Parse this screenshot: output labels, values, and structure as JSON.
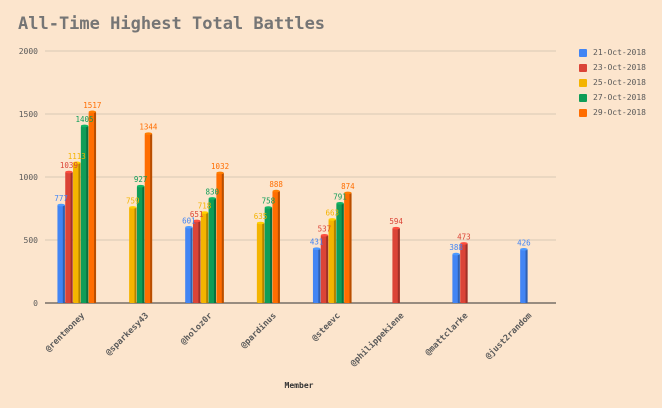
{
  "chart_data": {
    "type": "bar",
    "title": "All-Time Highest Total Battles",
    "xlabel": "Member",
    "ylabel": "",
    "ylim": [
      0,
      2000
    ],
    "yticks": [
      0,
      500,
      1000,
      1500,
      2000
    ],
    "grid": true,
    "legend_position": "right",
    "categories": [
      "@rentmoney",
      "@sparkesy43",
      "@holoz0r",
      "@pardinus",
      "@steevc",
      "@philippekiene",
      "@mattclarke",
      "@just2random"
    ],
    "series": [
      {
        "name": "21-Oct-2018",
        "color": "#4285f4",
        "values": [
          777,
          null,
          601,
          null,
          431,
          null,
          388,
          426
        ]
      },
      {
        "name": "23-Oct-2018",
        "color": "#db4437",
        "values": [
          1039,
          null,
          651,
          null,
          537,
          594,
          473,
          null
        ]
      },
      {
        "name": "25-Oct-2018",
        "color": "#f4b400",
        "values": [
          1113,
          759,
          718,
          635,
          663,
          null,
          null,
          null
        ]
      },
      {
        "name": "27-Oct-2018",
        "color": "#0f9d58",
        "values": [
          1405,
          927,
          830,
          758,
          791,
          null,
          null,
          null
        ]
      },
      {
        "name": "29-Oct-2018",
        "color": "#ff6d00",
        "values": [
          1517,
          1344,
          1032,
          888,
          874,
          null,
          null,
          null
        ]
      }
    ]
  }
}
